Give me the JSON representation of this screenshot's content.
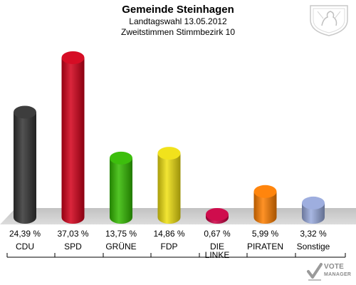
{
  "chart_data": {
    "type": "bar",
    "title": "Gemeinde Steinhagen",
    "subtitle": [
      "Landtagswahl 13.05.2012",
      "Zweitstimmen Stimmbezirk 10"
    ],
    "categories": [
      "CDU",
      "SPD",
      "GRÜNE",
      "FDP",
      "DIE LINKE",
      "PIRATEN",
      "Sonstige"
    ],
    "category_lines": [
      [
        "CDU"
      ],
      [
        "SPD"
      ],
      [
        "GRÜNE"
      ],
      [
        "FDP"
      ],
      [
        "DIE",
        "LINKE"
      ],
      [
        "PIRATEN"
      ],
      [
        "Sonstige"
      ]
    ],
    "values": [
      24.39,
      37.03,
      13.75,
      14.86,
      0.67,
      5.99,
      3.32
    ],
    "value_labels": [
      "24,39 %",
      "37,03 %",
      "13,75 %",
      "14,86 %",
      "0,67 %",
      "5,99 %",
      "3,32 %"
    ],
    "colors": [
      "#333333",
      "#d4001a",
      "#33bb00",
      "#f0e010",
      "#cc0044",
      "#ff7f00",
      "#99aadd"
    ],
    "ylim": [
      0,
      40
    ],
    "grid": false
  },
  "logo": {
    "line1": "VOTE",
    "line2": "MANAGER"
  }
}
